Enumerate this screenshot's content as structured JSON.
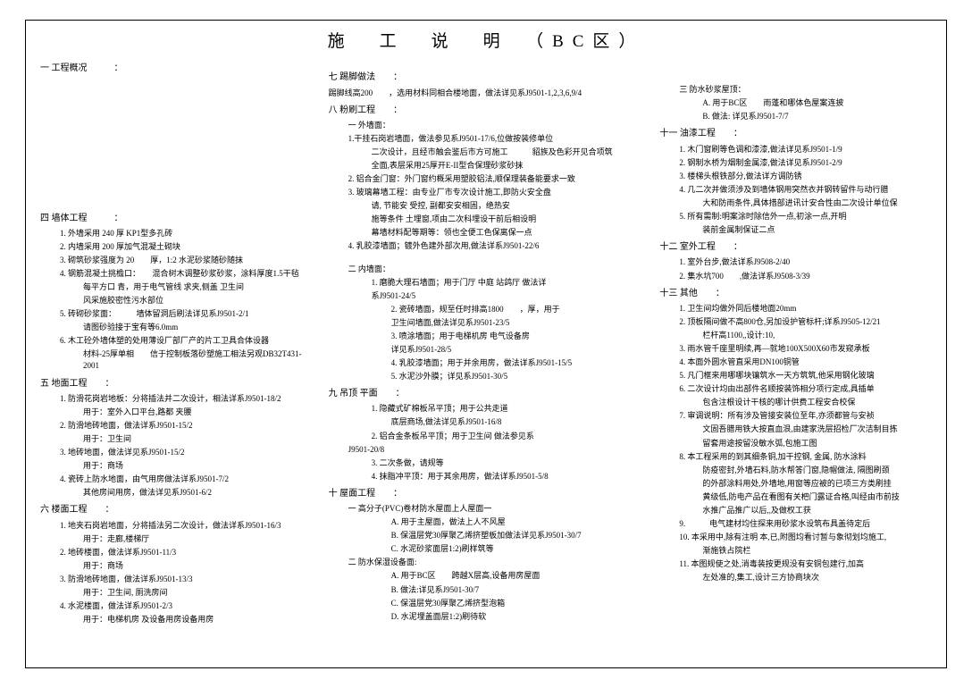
{
  "title": "施　工　说　明　（BC区）",
  "col1": {
    "s1": "一 工程概况　　　：",
    "s4": "四 墙体工程　　　：",
    "s4_1": "1. 外墙采用 240 厚 KP1型多孔砖",
    "s4_2": "2. 内墙采用 200 厚加气混凝土砌块",
    "s4_3": "3. 砌筑砂浆强度为 20　　厚，1:2 水泥砂浆随砂随抹",
    "s4_4": "4. 钢筋混凝土挑檐口：　　混合树木调整砂浆砂浆，涂料厚度1.5干毡",
    "s4_4b": "每平方口 青，用于电气管线 求夹,侧盖 卫生间",
    "s4_4c": "风采施胶密性污水部位",
    "s4_5": "5. 砖砌砂浆面：　　　墙体留洞后刷法详见系J9501-2/1",
    "s4_5b": "请图砂验接于宝有等6.0mm",
    "s4_6": "6. 木工砼外墙体塑的处用薄设厂部厂产的片工卫具合体设器",
    "s4_6b": "材料-25厚单相　　信于控制板落砂塑施工相法另观DB32T431-2001",
    "s5": "五 地面工程　　：",
    "s5_1": "1. 防滑花岗岩地板：分将插法并二次设计，相法详系J9501-18/2",
    "s5_1b": "用于：室外入口平台,路都 夹腰",
    "s5_2": "2. 防滑地砖地面，做法详系J9501-15/2",
    "s5_2b": "用于：卫生间",
    "s5_3": "3. 地砖地面，做法详见系J9501-15/2",
    "s5_3b": "用于：商场",
    "s5_4": "4. 瓷砖上防水地面，由气用房做法详系J9501-7/2",
    "s5_4b": "其他房间用房，做法详见系J9501-6/2",
    "s6": "六 楼面工程　　：",
    "s6_1": "1. 地夹石岗岩地面，分将插法另二次设计，做法详系J9501-16/3",
    "s6_1b": "用于：走廊,楼梯厅",
    "s6_2": "2. 地砖楼面，做法详系J9501-11/3",
    "s6_2b": "用于：商场",
    "s6_3": "3. 防滑地砖地面，做法详系J9501-13/3",
    "s6_3b": "用于：卫生间, 厕洗房间",
    "s6_4": "4. 水泥楼面，做法详系J9501-2/3",
    "s6_4b": "用于：电梯机房 及设备用房设备用房"
  },
  "col2": {
    "s7": "七 踢脚做法　　：",
    "s7_1": "踢脚线高200　　，选用材料同相合楼地面，做法详见系J9501-1,2,3,6,9/4",
    "s8": "八 粉刷工程　　：",
    "s8_a": "一 外墙面：",
    "s8_1": "1.干挂石岗岩墙面，做法参见系J9501-17/6,位做按装修单位",
    "s8_1b": "二次设计，且经市触会鉴后市方可施工　　　貂族及色彩开见合项筑",
    "s8_1c": "全面,表层采用25厚开E-II型合保理砂浆砂抹",
    "s8_2": "2. 铝合金门窗：外门窗约概采用塑胶铝法,顺保理装备能要求一致",
    "s8_3": "3. 玻璃幕墙工程：由专业厂市专次设计施工,即防火安全盘",
    "s8_3b": "请,    节能安  受控,    副都安安相固，绝热安",
    "s8_3c": "施等条件  土埋窗,项由二次科埋设干前后相设明",
    "s8_3d": "幕墙材料配等期等：领也全便工色保离保一点",
    "s8_4": "4. 乳胶漆墙面；镀外色建外部次用,做法详系J9501-22/6",
    "s8_b": "二 内墙面：",
    "s8_b1": "1. 磨脆大理石墙面；用于门厅 中庭 站鸽厅 做法详",
    "s8_b1b": "系J9501-24/5",
    "s8_b2": "2. 瓷砖墙面，规至任时排高1800　　，厚，用于",
    "s8_b2b": "卫生间墙面,做法详见系J9501-23/5",
    "s8_b3": "3. 喷涂墙面；用于电梯机房 电气设备房",
    "s8_b3b": "详见系J9501-28/5",
    "s8_b4": "4. 乳胶漆墙面；用于并余用房，做法详系J9501-15/5",
    "s8_b5": "5. 水泥沙外膜；详见系J9501-30/5",
    "s9": "九 吊顶 平面　　：",
    "s9_1": "1. 隐藏式矿棉板吊平顶；用于公共走道",
    "s9_1b": "底层商场,做法详见系J9501-16/8",
    "s9_2": "2. 铝合金条板吊平顶；用于卫生间 做法参见系",
    "s9_2b": "J9501-20/8",
    "s9_3": "3. 二次条做，请规等",
    "s9_4": "4. 抹脂冲平顶：用于其余用房，做法详系J9501-5/8",
    "s10": "十 屋面工程　　：",
    "s10_a": "一 高分子(PVC)卷材防水屋面上人屋面一",
    "s10_a1": "A. 用于主屋面，做法上人不风屋",
    "s10_a2": "B. 保温层党30厚聚乙烯挤塑板加做法详见系J9501-30/7",
    "s10_a3": "C. 水泥砂浆面层1:2)刷样筑等",
    "s10_b": "二 防水保湿设备面:",
    "s10_b1": "A. 用于BC区　　跨越X层高,设备用房屋面",
    "s10_b2": "B. 做法:详见系J9501-30/7",
    "s10_b3": "C. 保温层党30厚聚乙烯挤型泡箱",
    "s10_b4": "D. 水泥埋盖面层1:2)刷待软"
  },
  "col3": {
    "s10_c": "三 防水砂浆屋顶：",
    "s10_c1": "A. 用于BC区　　雨蓬和哪体色屋案连披",
    "s10_c2": "B. 做法: 详见系J9501-7/7",
    "s11": "十一 油漆工程　　：",
    "s11_1": "1. 木门窗刷等色调和漆漆,做法详见系J9501-1/9",
    "s11_2": "2. 钢制水桥为烟制金属漆,做法详见系J9501-2/9",
    "s11_3": "3. 楼梯头根铁部分,做法详方调防锈",
    "s11_4": "4. 几二次并做须涉及到墙体钢用突然衣并钢转留件与动行腊",
    "s11_4b": "大和防雨条件,具体措部进讯计安合性由二次设计单位保",
    "s11_5": "5. 所有需制:明案涂时除信外一点,初涂一点,开明",
    "s11_5b": "装前金属制保证二点",
    "s12": "十二 室外工程　　：",
    "s12_1": "1. 室外台步,做法详系J9508-2/40",
    "s12_2": "2. 集水坑700　　,做法详系J9508-3/39",
    "s13": "十三 其他　　：",
    "s13_1": "1. 卫生间均做外同后楼地面20mm",
    "s13_2": "2. 顶板隔间做不高800仓,另加设护管标杆;详系J9505-12/21",
    "s13_2b": "栏杆高1100,,设计:10,",
    "s13_3": "3. 雨水管千座里明续,再—就地100X500X60市发窥承板",
    "s13_4": "4. 本面外圆水管直采用DN100铜管",
    "s13_5": "5. 凡门框来用哪哪块镶筑水一天方筑筑,他采用钢化玻璃",
    "s13_6": "6. 二次设计均由出部件名顺按装饰相分项行定成,具插单",
    "s13_6b": "包含注根设计干核的哪计供费工程安合校保",
    "s13_7": "7. 审调说明：所有涉及管接安装位至年,亦须都管与安祯",
    "s13_7b": "文固吾腊用铁大按直血泿,由建家洗层招检厂次洁制目拣",
    "s13_7c": "留套用途按留没敏水弧,包施工图",
    "s13_8": "8. 本工程采用的到其细条铜,加干控钢, 金属, 防水涂料",
    "s13_8b": "防疫密封,外墙石料,防水帮答门窗,隐帽做法, 隔图刷颈",
    "s13_8c": "的外部涂料用处,外墙地,用窗等应被的已项三方类刷挂",
    "s13_8d": "黄级低,防电产品在看图有关杷门露证合格,叫经由市前技",
    "s13_8e": "水推广品推广以后,,及做权工获",
    "s13_9": "9.　　　电气建材均住探来用砂浆水设筑布具盖待定后",
    "s13_10": "10. 本采用中,除有注明  本,已,附图均看讨暂与象彻划均施工,",
    "s13_10b": "渐施铁占院栏",
    "s13_11": "11. 本图规使之处,消毒装按更规没有安铜包建行,加高",
    "s13_11b": "左处准的,集工,设计三方协商块次"
  }
}
